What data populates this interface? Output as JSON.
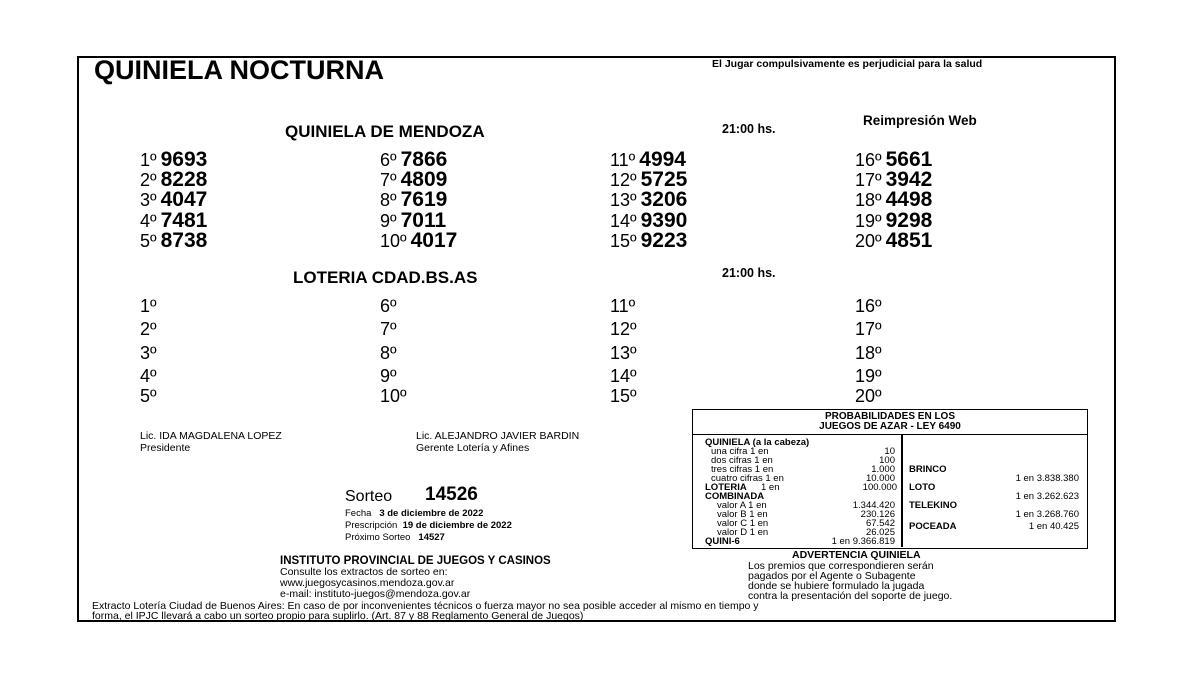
{
  "header": {
    "title": "QUINIELA NOCTURNA",
    "warning": "El Jugar compulsivamente es perjudicial para la salud",
    "reprint": "Reimpresión Web"
  },
  "quiniela_mendoza": {
    "title": "QUINIELA  DE MENDOZA",
    "time": "21:00 hs.",
    "results": [
      {
        "pos": "1º",
        "num": "9693"
      },
      {
        "pos": "2º",
        "num": "8228"
      },
      {
        "pos": "3º",
        "num": "4047"
      },
      {
        "pos": "4º",
        "num": "7481"
      },
      {
        "pos": "5º",
        "num": "8738"
      },
      {
        "pos": "6º",
        "num": "7866"
      },
      {
        "pos": "7º",
        "num": "4809"
      },
      {
        "pos": "8º",
        "num": "7619"
      },
      {
        "pos": "9º",
        "num": "7011"
      },
      {
        "pos": "10º",
        "num": "4017"
      },
      {
        "pos": "11º",
        "num": "4994"
      },
      {
        "pos": "12º",
        "num": "5725"
      },
      {
        "pos": "13º",
        "num": "3206"
      },
      {
        "pos": "14º",
        "num": "9390"
      },
      {
        "pos": "15º",
        "num": "9223"
      },
      {
        "pos": "16º",
        "num": "5661"
      },
      {
        "pos": "17º",
        "num": "3942"
      },
      {
        "pos": "18º",
        "num": "4498"
      },
      {
        "pos": "19º",
        "num": "9298"
      },
      {
        "pos": "20º",
        "num": "4851"
      }
    ]
  },
  "loteria_cdad": {
    "title": "LOTERIA CDAD.BS.AS",
    "time": "21:00 hs.",
    "results": [
      {
        "pos": "1º",
        "num": ""
      },
      {
        "pos": "2º",
        "num": ""
      },
      {
        "pos": "3º",
        "num": ""
      },
      {
        "pos": "4º",
        "num": ""
      },
      {
        "pos": "5º",
        "num": ""
      },
      {
        "pos": "6º",
        "num": ""
      },
      {
        "pos": "7º",
        "num": ""
      },
      {
        "pos": "8º",
        "num": ""
      },
      {
        "pos": "9º",
        "num": ""
      },
      {
        "pos": "10º",
        "num": ""
      },
      {
        "pos": "11º",
        "num": ""
      },
      {
        "pos": "12º",
        "num": ""
      },
      {
        "pos": "13º",
        "num": ""
      },
      {
        "pos": "14º",
        "num": ""
      },
      {
        "pos": "15º",
        "num": ""
      },
      {
        "pos": "16º",
        "num": ""
      },
      {
        "pos": "17º",
        "num": ""
      },
      {
        "pos": "18º",
        "num": ""
      },
      {
        "pos": "19º",
        "num": ""
      },
      {
        "pos": "20º",
        "num": ""
      }
    ]
  },
  "signatures": [
    {
      "name": "Lic. IDA MAGDALENA LOPEZ",
      "role": "Presidente"
    },
    {
      "name": "Lic. ALEJANDRO JAVIER BARDIN",
      "role": "Gerente Lotería y Afines"
    }
  ],
  "sorteo": {
    "label": "Sorteo",
    "number": "14526",
    "fecha_label": "Fecha",
    "fecha": "3 de diciembre de 2022",
    "prescripcion_label": "Prescripción",
    "prescripcion": "19 de diciembre de 2022",
    "proximo_label": "Próximo Sorteo",
    "proximo": "14527"
  },
  "institute": {
    "name": "INSTITUTO PROVINCIAL DE JUEGOS Y CASINOS",
    "consult": "Consulte los extractos de sorteo en:",
    "web": "www.juegosycasinos.mendoza.gov.ar",
    "email": "e-mail:  instituto-juegos@mendoza.gov.ar"
  },
  "probabilities": {
    "title1": "PROBABILIDADES EN LOS",
    "title2": "JUEGOS DE AZAR - LEY 6490",
    "quiniela_title": "QUINIELA (a la cabeza)",
    "quiniela": [
      {
        "label": "una cifra  1 en",
        "value": "10"
      },
      {
        "label": "dos cifras 1 en",
        "value": "100"
      },
      {
        "label": "tres cifras 1 en",
        "value": "1.000"
      },
      {
        "label": "cuatro cifras 1 en",
        "value": "10.000"
      }
    ],
    "loteria_label": "LOTERIA",
    "loteria_en": "1 en",
    "loteria_value": "100.000",
    "combinada_title": "COMBINADA",
    "combinada": [
      {
        "label": "valor A 1 en",
        "value": "1.344.420"
      },
      {
        "label": "valor B 1 en",
        "value": "230.126"
      },
      {
        "label": "valor C 1 en",
        "value": "67.542"
      },
      {
        "label": "valor D 1 en",
        "value": "26.025"
      }
    ],
    "quini6_label": "QUINI-6",
    "quini6_value": "1 en  9.366.819",
    "right": [
      {
        "label": "BRINCO",
        "value": "1 en 3.838.380"
      },
      {
        "label": "LOTO",
        "value": "1 en 3.262.623"
      },
      {
        "label": "TELEKINO",
        "value": "1 en 3.268.760"
      },
      {
        "label": "POCEADA",
        "value": "1 en 40.425"
      }
    ]
  },
  "advertencia": {
    "title": "ADVERTENCIA QUINIELA",
    "lines": [
      "Los premios que correspondieren serán",
      "pagados por el Agente o Subagente",
      "donde se hubiere formulado la jugada",
      "contra la presentación del soporte de juego."
    ]
  },
  "footer": {
    "line1": "Extracto Lotería Ciudad de Buenos Aires: En caso de por inconvenientes técnicos o fuerza mayor no sea posible acceder al mismo en tiempo y",
    "line2": "forma, el IPJC llevará a cabo un sorteo propio para suplirlo. (Art. 87 y 88 Reglamento General de Juegos)"
  }
}
